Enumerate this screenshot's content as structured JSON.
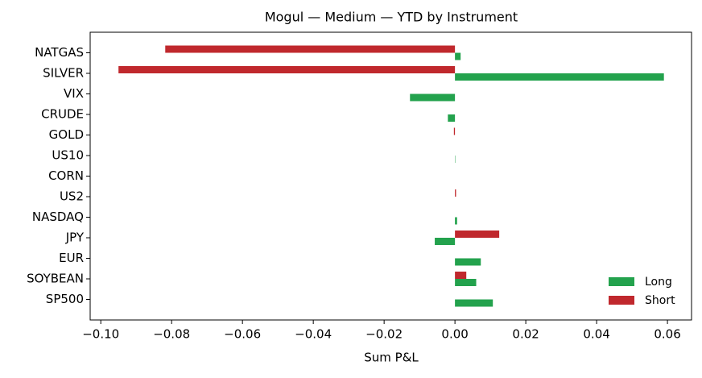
{
  "chart_data": {
    "type": "barh",
    "title": "Mogul — Medium — YTD by Instrument",
    "xlabel": "Sum P&L",
    "categories": [
      "NATGAS",
      "SILVER",
      "VIX",
      "CRUDE",
      "GOLD",
      "US10",
      "CORN",
      "US2",
      "NASDAQ",
      "JPY",
      "EUR",
      "SOYBEAN",
      "SP500"
    ],
    "series": [
      {
        "name": "Long",
        "color": "#23a24d",
        "values": [
          0.0016,
          0.059,
          -0.0127,
          -0.002,
          0,
          0.0001,
          0,
          0,
          0.0006,
          -0.0057,
          0.0073,
          0.006,
          0.0107
        ]
      },
      {
        "name": "Short",
        "color": "#c0282d",
        "values": [
          -0.0818,
          -0.095,
          0,
          0,
          -0.0003,
          0,
          0,
          0.0003,
          0,
          0.0125,
          0,
          0.0032,
          0
        ]
      }
    ],
    "xlim": [
      -0.103,
      0.0668
    ],
    "xticks": [
      {
        "value": -0.1,
        "label": "−0.10"
      },
      {
        "value": -0.08,
        "label": "−0.08"
      },
      {
        "value": -0.06,
        "label": "−0.06"
      },
      {
        "value": -0.04,
        "label": "−0.04"
      },
      {
        "value": -0.02,
        "label": "−0.02"
      },
      {
        "value": 0,
        "label": "0.00"
      },
      {
        "value": 0.02,
        "label": "0.02"
      },
      {
        "value": 0.04,
        "label": "0.04"
      },
      {
        "value": 0.06,
        "label": "0.06"
      }
    ],
    "legend": "lower right"
  }
}
